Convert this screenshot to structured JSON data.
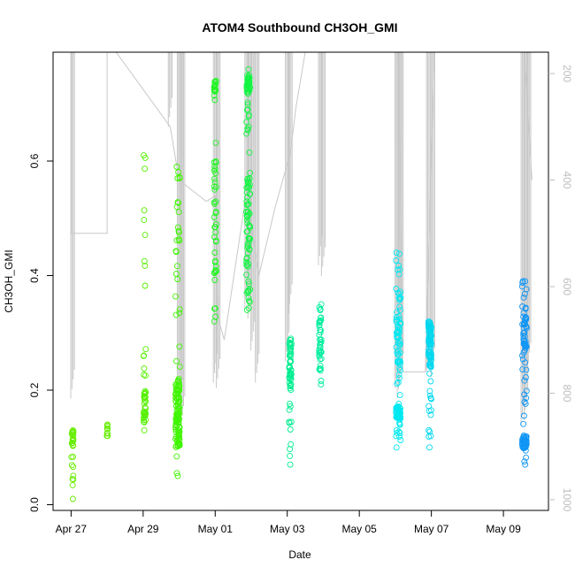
{
  "chart_data": {
    "type": "scatter",
    "title": "ATOM4 Southbound CH3OH_GMI",
    "xlabel": "Date",
    "ylabel": "CH3OH_GMI",
    "x_ticks": [
      "Apr 27",
      "Apr 29",
      "May 01",
      "May 03",
      "May 05",
      "May 07",
      "May 09"
    ],
    "x_tick_dates": [
      "2018-04-27",
      "2018-04-29",
      "2018-05-01",
      "2018-05-03",
      "2018-05-05",
      "2018-05-07",
      "2018-05-09"
    ],
    "xlim": [
      "2018-04-26T12:00",
      "2018-05-10T06:00"
    ],
    "y_ticks": [
      "0.0",
      "0.2",
      "0.4",
      "0.6"
    ],
    "ylim": [
      -0.01,
      0.79
    ],
    "y2_ticks": [
      "200",
      "400",
      "600",
      "800",
      "1000"
    ],
    "y2_label_note": "pressure axis (reversed)",
    "y2lim": [
      1020,
      160
    ],
    "grid": false,
    "point_color_scale": [
      "#7FFF00",
      "#00FF7F",
      "#00FFFF",
      "#007FFF"
    ],
    "pressure_trace_color": "#c8c8c8",
    "clusters": [
      {
        "date": "2018-04-27T01:00",
        "span_h": 1.5,
        "ymin": 0.01,
        "ymax": 0.13,
        "dense": [
          [
            0.1,
            0.13
          ]
        ],
        "n": 28,
        "color": "#66ee00"
      },
      {
        "date": "2018-04-28T00:00",
        "span_h": 0.8,
        "ymin": 0.12,
        "ymax": 0.14,
        "dense": [
          [
            0.12,
            0.14
          ]
        ],
        "n": 10,
        "color": "#66ee00"
      },
      {
        "date": "2018-04-29T01:00",
        "span_h": 1.5,
        "ymin": 0.13,
        "ymax": 0.61,
        "dense": [
          [
            0.14,
            0.2
          ]
        ],
        "n": 45,
        "color": "#55f000"
      },
      {
        "date": "2018-04-29T23:00",
        "span_h": 3.0,
        "ymin": 0.05,
        "ymax": 0.59,
        "dense": [
          [
            0.1,
            0.22
          ]
        ],
        "n": 130,
        "color": "#3ff500"
      },
      {
        "date": "2018-05-01T00:00",
        "span_h": 1.5,
        "ymin": 0.32,
        "ymax": 0.74,
        "dense": [
          [
            0.4,
            0.6
          ],
          [
            0.72,
            0.74
          ]
        ],
        "n": 60,
        "color": "#22f522"
      },
      {
        "date": "2018-05-01T22:00",
        "span_h": 2.5,
        "ymin": 0.34,
        "ymax": 0.76,
        "dense": [
          [
            0.42,
            0.58
          ],
          [
            0.72,
            0.75
          ]
        ],
        "n": 110,
        "color": "#10f540"
      },
      {
        "date": "2018-05-03T02:00",
        "span_h": 1.5,
        "ymin": 0.07,
        "ymax": 0.29,
        "dense": [
          [
            0.2,
            0.29
          ]
        ],
        "n": 60,
        "color": "#00ee90"
      },
      {
        "date": "2018-05-03T22:00",
        "span_h": 1.5,
        "ymin": 0.21,
        "ymax": 0.35,
        "dense": [
          [
            0.24,
            0.33
          ]
        ],
        "n": 45,
        "color": "#00eea0"
      },
      {
        "date": "2018-05-06T02:00",
        "span_h": 3.0,
        "ymin": 0.1,
        "ymax": 0.44,
        "dense": [
          [
            0.24,
            0.34
          ],
          [
            0.15,
            0.17
          ]
        ],
        "n": 140,
        "color": "#00e8f0"
      },
      {
        "date": "2018-05-06T23:00",
        "span_h": 2.0,
        "ymin": 0.1,
        "ymax": 0.32,
        "dense": [
          [
            0.24,
            0.32
          ]
        ],
        "n": 90,
        "color": "#00d8f0"
      },
      {
        "date": "2018-05-09T14:00",
        "span_h": 3.0,
        "ymin": 0.07,
        "ymax": 0.39,
        "dense": [
          [
            0.27,
            0.33
          ],
          [
            0.1,
            0.12
          ]
        ],
        "n": 120,
        "color": "#1096f5"
      }
    ],
    "pressure_trace": [
      [
        "2018-04-26T23:00",
        160
      ],
      [
        "2018-04-27T00:00",
        160
      ],
      [
        "2018-04-27T00:00",
        500
      ],
      [
        "2018-04-28T00:00",
        500
      ],
      [
        "2018-04-28T00:00",
        160
      ],
      [
        "2018-04-28T06:00",
        160
      ],
      [
        "2018-04-29T18:00",
        300
      ],
      [
        "2018-04-30T00:00",
        400
      ],
      [
        "2018-04-30T18:00",
        440
      ],
      [
        "2018-05-01T00:00",
        430
      ],
      [
        "2018-05-01T02:00",
        660
      ],
      [
        "2018-05-01T06:00",
        700
      ],
      [
        "2018-05-01T21:00",
        420
      ],
      [
        "2018-05-02T05:00",
        580
      ],
      [
        "2018-05-02T16:00",
        450
      ],
      [
        "2018-05-03T02:00",
        350
      ],
      [
        "2018-05-03T06:00",
        260
      ],
      [
        "2018-05-03T12:00",
        160
      ],
      [
        "2018-05-06T02:00",
        160
      ],
      [
        "2018-05-06T05:00",
        760
      ],
      [
        "2018-05-06T20:00",
        760
      ],
      [
        "2018-05-07T02:00",
        160
      ],
      [
        "2018-05-09T14:00",
        160
      ],
      [
        "2018-05-09T19:00",
        400
      ]
    ],
    "profile_spikes": [
      {
        "date": "2018-04-27T01:00",
        "bottom": 810
      },
      {
        "date": "2018-04-29T18:00",
        "bottom": 300
      },
      {
        "date": "2018-04-30T00:00",
        "bottom": 800
      },
      {
        "date": "2018-04-30T01:30",
        "bottom": 830
      },
      {
        "date": "2018-04-30T02:30",
        "bottom": 860
      },
      {
        "date": "2018-05-01T00:00",
        "bottom": 780
      },
      {
        "date": "2018-05-01T02:00",
        "bottom": 790
      },
      {
        "date": "2018-05-01T21:00",
        "bottom": 640
      },
      {
        "date": "2018-05-01T23:00",
        "bottom": 660
      },
      {
        "date": "2018-05-02T01:00",
        "bottom": 720
      },
      {
        "date": "2018-05-02T04:00",
        "bottom": 780
      },
      {
        "date": "2018-05-03T00:00",
        "bottom": 740
      },
      {
        "date": "2018-05-03T02:00",
        "bottom": 650
      },
      {
        "date": "2018-05-03T22:00",
        "bottom": 560
      },
      {
        "date": "2018-05-04T00:00",
        "bottom": 580
      },
      {
        "date": "2018-05-06T01:00",
        "bottom": 790
      },
      {
        "date": "2018-05-06T02:30",
        "bottom": 810
      },
      {
        "date": "2018-05-06T04:00",
        "bottom": 780
      },
      {
        "date": "2018-05-06T22:00",
        "bottom": 760
      },
      {
        "date": "2018-05-07T01:00",
        "bottom": 770
      },
      {
        "date": "2018-05-09T13:00",
        "bottom": 860
      },
      {
        "date": "2018-05-09T15:00",
        "bottom": 850
      },
      {
        "date": "2018-05-09T17:00",
        "bottom": 760
      }
    ]
  }
}
